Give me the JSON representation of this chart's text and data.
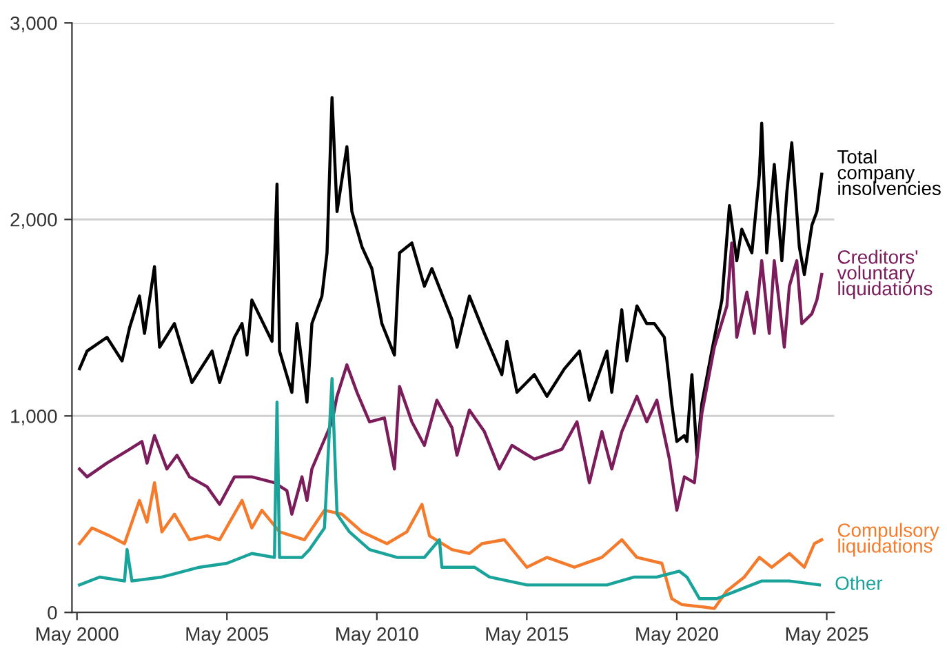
{
  "chart_data": {
    "type": "line",
    "xlim": [
      "2000-03",
      "2025-08"
    ],
    "ylim": [
      0,
      3000
    ],
    "xticks": [
      {
        "value": "2000-05",
        "label": "May 2000"
      },
      {
        "value": "2005-05",
        "label": "May 2005"
      },
      {
        "value": "2010-05",
        "label": "May 2010"
      },
      {
        "value": "2015-05",
        "label": "May 2015"
      },
      {
        "value": "2020-05",
        "label": "May 2020"
      },
      {
        "value": "2025-05",
        "label": "May 2025"
      }
    ],
    "yticks": [
      0,
      {
        "value": 1000,
        "label": "1,000"
      },
      {
        "value": 2000,
        "label": "2,000"
      },
      {
        "value": 3000,
        "label": "3,000"
      }
    ],
    "grid": "y",
    "legend": false,
    "marker": "none",
    "line_style": "solid",
    "series": [
      {
        "name": "Total company insolvencies",
        "color": "#000000",
        "x": [
          "2000-06",
          "2000-09",
          "2001-05",
          "2001-11",
          "2002-02",
          "2002-06",
          "2002-08",
          "2002-12",
          "2003-02",
          "2003-08",
          "2004-03",
          "2004-11",
          "2005-02",
          "2005-08",
          "2005-11",
          "2006-01",
          "2006-03",
          "2006-11",
          "2007-01",
          "2007-02",
          "2007-07",
          "2007-09",
          "2008-01",
          "2008-03",
          "2008-07",
          "2008-09",
          "2008-11",
          "2009-01",
          "2009-05",
          "2009-07",
          "2009-11",
          "2010-03",
          "2010-07",
          "2010-12",
          "2011-02",
          "2011-07",
          "2011-12",
          "2012-03",
          "2012-11",
          "2013-01",
          "2013-06",
          "2013-12",
          "2014-07",
          "2014-09",
          "2015-01",
          "2015-08",
          "2016-01",
          "2016-08",
          "2017-02",
          "2017-06",
          "2018-01",
          "2018-03",
          "2018-07",
          "2018-09",
          "2019-01",
          "2019-05",
          "2019-08",
          "2019-12",
          "2020-03",
          "2020-05",
          "2020-08",
          "2020-09",
          "2020-11",
          "2021-01",
          "2021-03",
          "2021-07",
          "2021-11",
          "2022-02",
          "2022-05",
          "2022-07",
          "2022-11",
          "2023-02",
          "2023-03",
          "2023-05",
          "2023-08",
          "2023-11",
          "2024-01",
          "2024-03",
          "2024-06",
          "2024-08",
          "2024-11",
          "2025-01",
          "2025-03"
        ],
        "values": [
          1240,
          1330,
          1400,
          1280,
          1450,
          1610,
          1420,
          1760,
          1350,
          1470,
          1170,
          1330,
          1170,
          1400,
          1470,
          1310,
          1590,
          1380,
          2180,
          1330,
          1120,
          1470,
          1070,
          1470,
          1610,
          1830,
          2620,
          2040,
          2370,
          2040,
          1860,
          1750,
          1470,
          1310,
          1830,
          1880,
          1660,
          1750,
          1490,
          1350,
          1610,
          1420,
          1210,
          1380,
          1120,
          1210,
          1100,
          1240,
          1330,
          1080,
          1330,
          1120,
          1540,
          1280,
          1560,
          1470,
          1470,
          1400,
          1060,
          870,
          900,
          870,
          1210,
          800,
          1060,
          1330,
          1590,
          2070,
          1790,
          1950,
          1830,
          2230,
          2490,
          1830,
          2280,
          1790,
          2140,
          2390,
          1860,
          1720,
          1970,
          2040,
          2230
        ]
      },
      {
        "name": "Creditors' voluntary liquidations",
        "color": "#7b1d5a",
        "x": [
          "2000-06",
          "2000-09",
          "2001-05",
          "2002-02",
          "2002-07",
          "2002-09",
          "2002-12",
          "2003-05",
          "2003-09",
          "2004-02",
          "2004-09",
          "2005-02",
          "2005-08",
          "2006-03",
          "2006-12",
          "2007-05",
          "2007-07",
          "2007-11",
          "2008-01",
          "2008-03",
          "2008-07",
          "2008-11",
          "2009-01",
          "2009-05",
          "2009-09",
          "2010-02",
          "2010-08",
          "2010-12",
          "2011-02",
          "2011-07",
          "2011-12",
          "2012-05",
          "2012-11",
          "2013-01",
          "2013-06",
          "2013-12",
          "2014-06",
          "2014-11",
          "2015-08",
          "2016-07",
          "2017-01",
          "2017-06",
          "2017-11",
          "2018-03",
          "2018-07",
          "2019-01",
          "2019-05",
          "2019-09",
          "2020-02",
          "2020-05",
          "2020-08",
          "2020-12",
          "2021-03",
          "2021-08",
          "2022-01",
          "2022-03",
          "2022-05",
          "2022-09",
          "2022-12",
          "2023-03",
          "2023-06",
          "2023-08",
          "2023-12",
          "2024-02",
          "2024-05",
          "2024-07",
          "2024-11",
          "2025-01",
          "2025-03"
        ],
        "values": [
          730,
          690,
          760,
          830,
          870,
          760,
          900,
          730,
          800,
          690,
          640,
          550,
          690,
          690,
          660,
          620,
          500,
          690,
          570,
          730,
          850,
          970,
          1100,
          1260,
          1120,
          970,
          990,
          730,
          1150,
          970,
          850,
          1080,
          940,
          800,
          1030,
          920,
          730,
          850,
          780,
          830,
          970,
          660,
          920,
          730,
          920,
          1100,
          970,
          1080,
          780,
          520,
          690,
          660,
          1010,
          1350,
          1560,
          1880,
          1400,
          1630,
          1420,
          1790,
          1420,
          1790,
          1350,
          1660,
          1790,
          1470,
          1520,
          1590,
          1720
        ]
      },
      {
        "name": "Compulsory liquidations",
        "color": "#f47a2c",
        "x": [
          "2000-06",
          "2000-11",
          "2001-06",
          "2001-12",
          "2002-06",
          "2002-09",
          "2002-12",
          "2003-03",
          "2003-08",
          "2004-02",
          "2004-09",
          "2005-02",
          "2005-11",
          "2006-03",
          "2006-07",
          "2007-02",
          "2007-12",
          "2008-08",
          "2009-03",
          "2009-11",
          "2010-09",
          "2011-05",
          "2011-11",
          "2012-02",
          "2012-11",
          "2013-06",
          "2013-11",
          "2014-08",
          "2015-05",
          "2016-01",
          "2016-12",
          "2017-11",
          "2018-07",
          "2019-01",
          "2019-11",
          "2020-03",
          "2020-07",
          "2021-02",
          "2021-08",
          "2022-01",
          "2022-08",
          "2023-02",
          "2023-07",
          "2024-02",
          "2024-08",
          "2024-12",
          "2025-03"
        ],
        "values": [
          350,
          430,
          390,
          350,
          570,
          460,
          660,
          410,
          500,
          370,
          390,
          370,
          570,
          430,
          520,
          410,
          370,
          520,
          500,
          410,
          350,
          410,
          550,
          390,
          320,
          300,
          350,
          370,
          230,
          280,
          230,
          280,
          370,
          280,
          250,
          70,
          40,
          30,
          20,
          110,
          180,
          280,
          230,
          300,
          230,
          350,
          370
        ]
      },
      {
        "name": "Other",
        "color": "#1aa39a",
        "x": [
          "2000-06",
          "2001-02",
          "2001-12",
          "2002-01",
          "2002-03",
          "2003-03",
          "2004-06",
          "2005-05",
          "2006-03",
          "2006-12",
          "2007-01",
          "2007-02",
          "2007-11",
          "2008-02",
          "2008-08",
          "2008-11",
          "2009-01",
          "2009-06",
          "2010-02",
          "2011-01",
          "2011-12",
          "2012-06",
          "2012-07",
          "2013-06",
          "2013-08",
          "2014-02",
          "2015-05",
          "2016-11",
          "2018-01",
          "2018-12",
          "2019-09",
          "2020-06",
          "2020-09",
          "2021-02",
          "2021-09",
          "2022-05",
          "2023-03",
          "2024-02",
          "2025-02"
        ],
        "values": [
          140,
          180,
          160,
          320,
          160,
          180,
          230,
          250,
          300,
          280,
          1070,
          280,
          280,
          320,
          430,
          1190,
          500,
          410,
          320,
          280,
          280,
          370,
          230,
          230,
          230,
          180,
          140,
          140,
          140,
          180,
          180,
          210,
          180,
          70,
          70,
          110,
          160,
          160,
          140
        ]
      }
    ]
  }
}
